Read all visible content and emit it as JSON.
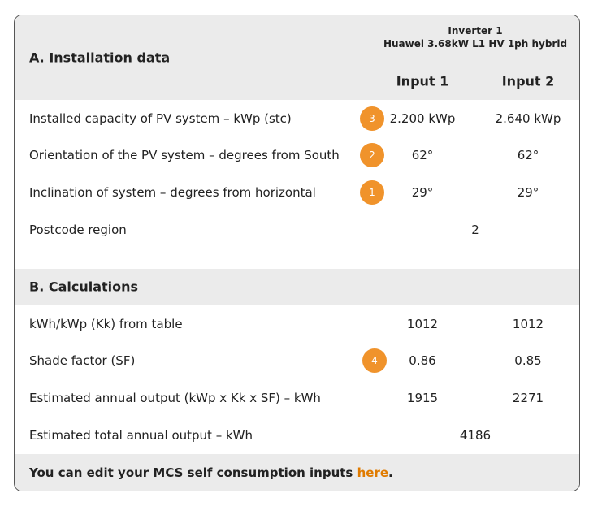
{
  "header": {
    "section": "A. Installation data",
    "inverter": "Inverter 1",
    "model": "Huawei 3.68kW L1 HV 1ph hybrid",
    "columns": [
      "Input 1",
      "Input 2"
    ]
  },
  "section_a": {
    "rows": [
      {
        "label": "Installed capacity of PV system – kWp (stc)",
        "badge": 3,
        "values": [
          "2.200 kWp",
          "2.640 kWp"
        ]
      },
      {
        "label": "Orientation of the PV system – degrees from South",
        "badge": 2,
        "values": [
          "62°",
          "62°"
        ]
      },
      {
        "label": "Inclination of system – degrees from horizontal",
        "badge": 1,
        "values": [
          "29°",
          "29°"
        ]
      },
      {
        "label": "Postcode region",
        "value": 2
      }
    ]
  },
  "section_b": {
    "title": "B. Calculations",
    "rows": [
      {
        "label": "kWh/kWp (Kk) from table",
        "values": [
          1012,
          1012
        ]
      },
      {
        "label": "Shade factor (SF)",
        "badge": 4,
        "values": [
          0.86,
          0.85
        ]
      },
      {
        "label": "Estimated annual output (kWp x Kk x SF) – kWh",
        "values": [
          1915,
          2271
        ]
      },
      {
        "label": "Estimated total annual output – kWh",
        "value": 4186
      }
    ]
  },
  "footer": {
    "text": "You can edit your MCS self consumption inputs",
    "link": "here",
    "end": "."
  }
}
